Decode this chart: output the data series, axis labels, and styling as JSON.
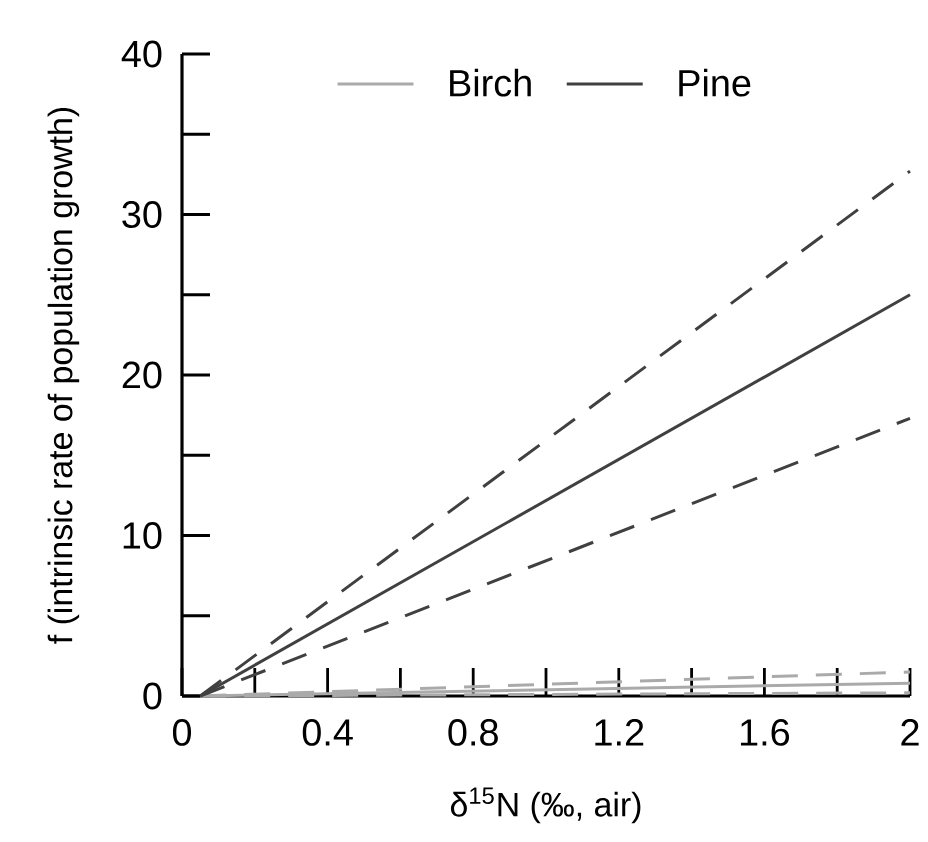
{
  "chart_data": {
    "type": "line",
    "xlabel": "δ$^{15}$N (‰, air)",
    "ylabel": "f (intrinsic rate of population growth)",
    "xlim": [
      0,
      2
    ],
    "ylim": [
      0,
      40
    ],
    "xticks": [
      0,
      {
        "value": 0.2,
        "label": null
      },
      0.4,
      {
        "value": 0.6,
        "label": null
      },
      0.8,
      {
        "value": 1.0,
        "label": null
      },
      1.2,
      {
        "value": 1.4,
        "label": null
      },
      1.6,
      {
        "value": 1.8,
        "label": null
      },
      2
    ],
    "yticks": [
      0,
      {
        "value": 5,
        "label": null
      },
      10,
      {
        "value": 15,
        "label": null
      },
      20,
      {
        "value": 25,
        "label": null
      },
      30,
      {
        "value": 35,
        "label": null
      },
      40
    ],
    "grid": false,
    "legend": "top",
    "marker": "none",
    "x": [
      0.05,
      2
    ],
    "series": [
      {
        "name": "Birch",
        "color": "#aaaaaa",
        "line_style": "solid",
        "values": [
          0,
          0.8
        ]
      },
      {
        "color": "#aaaaaa",
        "line_style": "dashed",
        "values": [
          0,
          1.5
        ]
      },
      {
        "color": "#aaaaaa",
        "line_style": "dashed",
        "values": [
          0,
          0.2
        ]
      },
      {
        "name": "Pine",
        "color": "#404040",
        "line_style": "solid",
        "values": [
          0,
          25
        ]
      },
      {
        "color": "#404040",
        "line_style": "dashed",
        "values": [
          0,
          32.7
        ]
      },
      {
        "color": "#404040",
        "line_style": "dashed",
        "values": [
          0,
          17.3
        ]
      }
    ]
  }
}
